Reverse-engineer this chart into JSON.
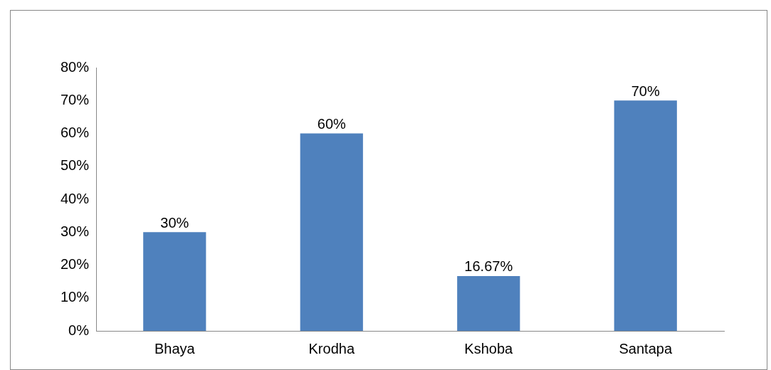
{
  "chart_data": {
    "type": "bar",
    "categories": [
      "Bhaya",
      "Krodha",
      "Kshoba",
      "Santapa"
    ],
    "values": [
      30,
      60,
      16.67,
      70
    ],
    "value_labels": [
      "30%",
      "60%",
      "16.67%",
      "70%"
    ],
    "color": "#4f81bd",
    "ylim": [
      0,
      80
    ],
    "yticks": [
      {
        "value": 0,
        "label": "0%"
      },
      {
        "value": 10,
        "label": "10%"
      },
      {
        "value": 20,
        "label": "20%"
      },
      {
        "value": 30,
        "label": "30%"
      },
      {
        "value": 40,
        "label": "40%"
      },
      {
        "value": 50,
        "label": "50%"
      },
      {
        "value": 60,
        "label": "60%"
      },
      {
        "value": 70,
        "label": "70%"
      },
      {
        "value": 80,
        "label": "80%"
      }
    ],
    "grid": false,
    "legend": false
  }
}
